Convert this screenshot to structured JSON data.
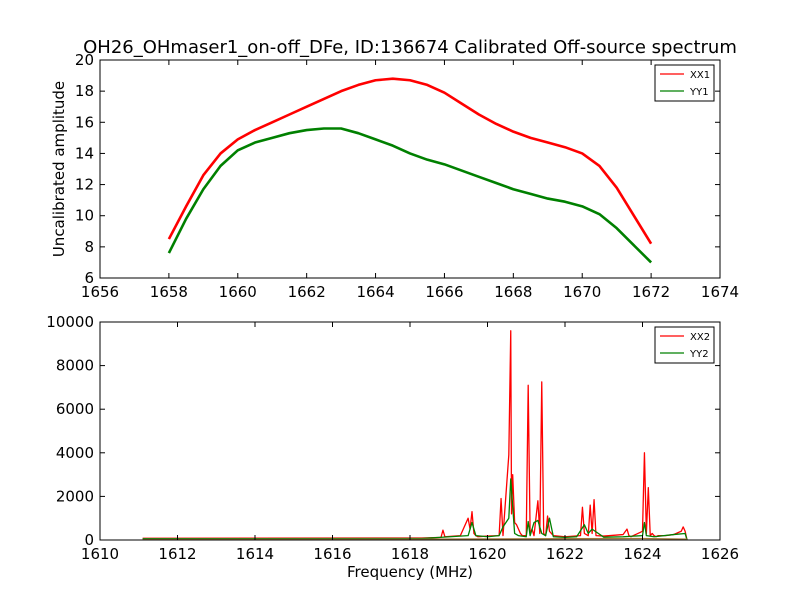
{
  "figure": {
    "title": "OH26_OHmaser1_on-off_DFe, ID:136674 Calibrated Off-source spectrum"
  },
  "chart_data": [
    {
      "type": "line",
      "title": "OH26_OHmaser1_on-off_DFe, ID:136674 Calibrated Off-source spectrum",
      "xlabel": "",
      "ylabel": "Uncalibrated amplitude",
      "xlim": [
        1656,
        1674
      ],
      "ylim": [
        6,
        20
      ],
      "xticks": [
        "1656",
        "1658",
        "1660",
        "1662",
        "1664",
        "1666",
        "1668",
        "1670",
        "1672",
        "1674"
      ],
      "yticks": [
        "6",
        "8",
        "10",
        "12",
        "14",
        "16",
        "18",
        "20"
      ],
      "grid": false,
      "legend_position": "top-right",
      "x": [
        1658.0,
        1658.5,
        1659.0,
        1659.5,
        1660.0,
        1660.5,
        1661.0,
        1661.5,
        1662.0,
        1662.5,
        1663.0,
        1663.5,
        1664.0,
        1664.5,
        1665.0,
        1665.5,
        1666.0,
        1666.5,
        1667.0,
        1667.5,
        1668.0,
        1668.5,
        1669.0,
        1669.5,
        1670.0,
        1670.5,
        1671.0,
        1671.5,
        1672.0
      ],
      "series": [
        {
          "name": "XX1",
          "color": "#ff0000",
          "values": [
            8.5,
            10.6,
            12.6,
            14.0,
            14.9,
            15.5,
            16.0,
            16.5,
            17.0,
            17.5,
            18.0,
            18.4,
            18.7,
            18.8,
            18.7,
            18.4,
            17.9,
            17.2,
            16.5,
            15.9,
            15.4,
            15.0,
            14.7,
            14.4,
            14.0,
            13.2,
            11.8,
            10.0,
            8.2
          ]
        },
        {
          "name": "YY1",
          "color": "#008000",
          "values": [
            7.6,
            9.8,
            11.7,
            13.2,
            14.2,
            14.7,
            15.0,
            15.3,
            15.5,
            15.6,
            15.6,
            15.3,
            14.9,
            14.5,
            14.0,
            13.6,
            13.3,
            12.9,
            12.5,
            12.1,
            11.7,
            11.4,
            11.1,
            10.9,
            10.6,
            10.1,
            9.2,
            8.1,
            7.0
          ]
        }
      ]
    },
    {
      "type": "line",
      "title": "",
      "xlabel": "Frequency (MHz)",
      "ylabel": "",
      "xlim": [
        1610,
        1626
      ],
      "ylim": [
        0,
        10000
      ],
      "xticks": [
        "1610",
        "1612",
        "1614",
        "1616",
        "1618",
        "1620",
        "1622",
        "1624",
        "1626"
      ],
      "yticks": [
        "0",
        "2000",
        "4000",
        "6000",
        "8000",
        "10000"
      ],
      "grid": false,
      "legend_position": "top-right",
      "series": [
        {
          "name": "XX2",
          "color": "#ff0000",
          "x": [
            1611.1,
            1618.3,
            1618.8,
            1618.85,
            1618.9,
            1619.3,
            1619.5,
            1619.55,
            1619.6,
            1619.65,
            1619.7,
            1619.75,
            1620.0,
            1620.3,
            1620.35,
            1620.4,
            1620.55,
            1620.6,
            1620.62,
            1620.65,
            1620.7,
            1620.75,
            1620.8,
            1620.85,
            1620.9,
            1621.0,
            1621.05,
            1621.1,
            1621.15,
            1621.2,
            1621.3,
            1621.35,
            1621.4,
            1621.45,
            1621.5,
            1621.55,
            1621.6,
            1621.7,
            1622.0,
            1622.4,
            1622.45,
            1622.5,
            1622.6,
            1622.65,
            1622.7,
            1622.75,
            1622.8,
            1623.0,
            1623.5,
            1623.6,
            1623.65,
            1623.7,
            1624.0,
            1624.05,
            1624.1,
            1624.15,
            1624.2,
            1624.25,
            1624.3,
            1624.35,
            1624.4,
            1624.6,
            1624.8,
            1625.0,
            1625.05,
            1625.1,
            1625.15
          ],
          "values": [
            80,
            90,
            120,
            450,
            150,
            200,
            1000,
            500,
            1300,
            300,
            200,
            150,
            180,
            200,
            1900,
            200,
            3900,
            9600,
            1200,
            3000,
            800,
            700,
            500,
            300,
            200,
            200,
            7100,
            300,
            500,
            200,
            1800,
            300,
            7250,
            300,
            200,
            1100,
            400,
            200,
            150,
            200,
            1500,
            300,
            200,
            1600,
            300,
            1850,
            200,
            180,
            250,
            500,
            200,
            150,
            400,
            4000,
            300,
            2400,
            200,
            300,
            200,
            150,
            200,
            200,
            250,
            400,
            600,
            400,
            0
          ]
        },
        {
          "name": "YY2",
          "color": "#008000",
          "x": [
            1611.1,
            1618.3,
            1619.5,
            1619.6,
            1619.7,
            1620.0,
            1620.3,
            1620.4,
            1620.55,
            1620.6,
            1620.7,
            1620.8,
            1621.0,
            1621.05,
            1621.1,
            1621.2,
            1621.3,
            1621.4,
            1621.5,
            1621.6,
            1621.7,
            1622.0,
            1622.3,
            1622.5,
            1622.6,
            1622.7,
            1623.0,
            1623.5,
            1624.0,
            1624.05,
            1624.1,
            1624.3,
            1624.8,
            1625.1,
            1625.15
          ],
          "values": [
            60,
            70,
            200,
            800,
            200,
            150,
            200,
            600,
            1000,
            2800,
            300,
            200,
            150,
            850,
            200,
            800,
            900,
            300,
            200,
            1000,
            150,
            120,
            150,
            700,
            300,
            500,
            130,
            150,
            200,
            800,
            200,
            150,
            250,
            300,
            0
          ]
        },
        {
          "name": "",
          "color": "#a07838",
          "x": [
            1611.1,
            1618.3,
            1620.0,
            1622.0,
            1624.0,
            1625.15
          ],
          "values": [
            30,
            40,
            50,
            60,
            70,
            40
          ]
        }
      ]
    }
  ]
}
